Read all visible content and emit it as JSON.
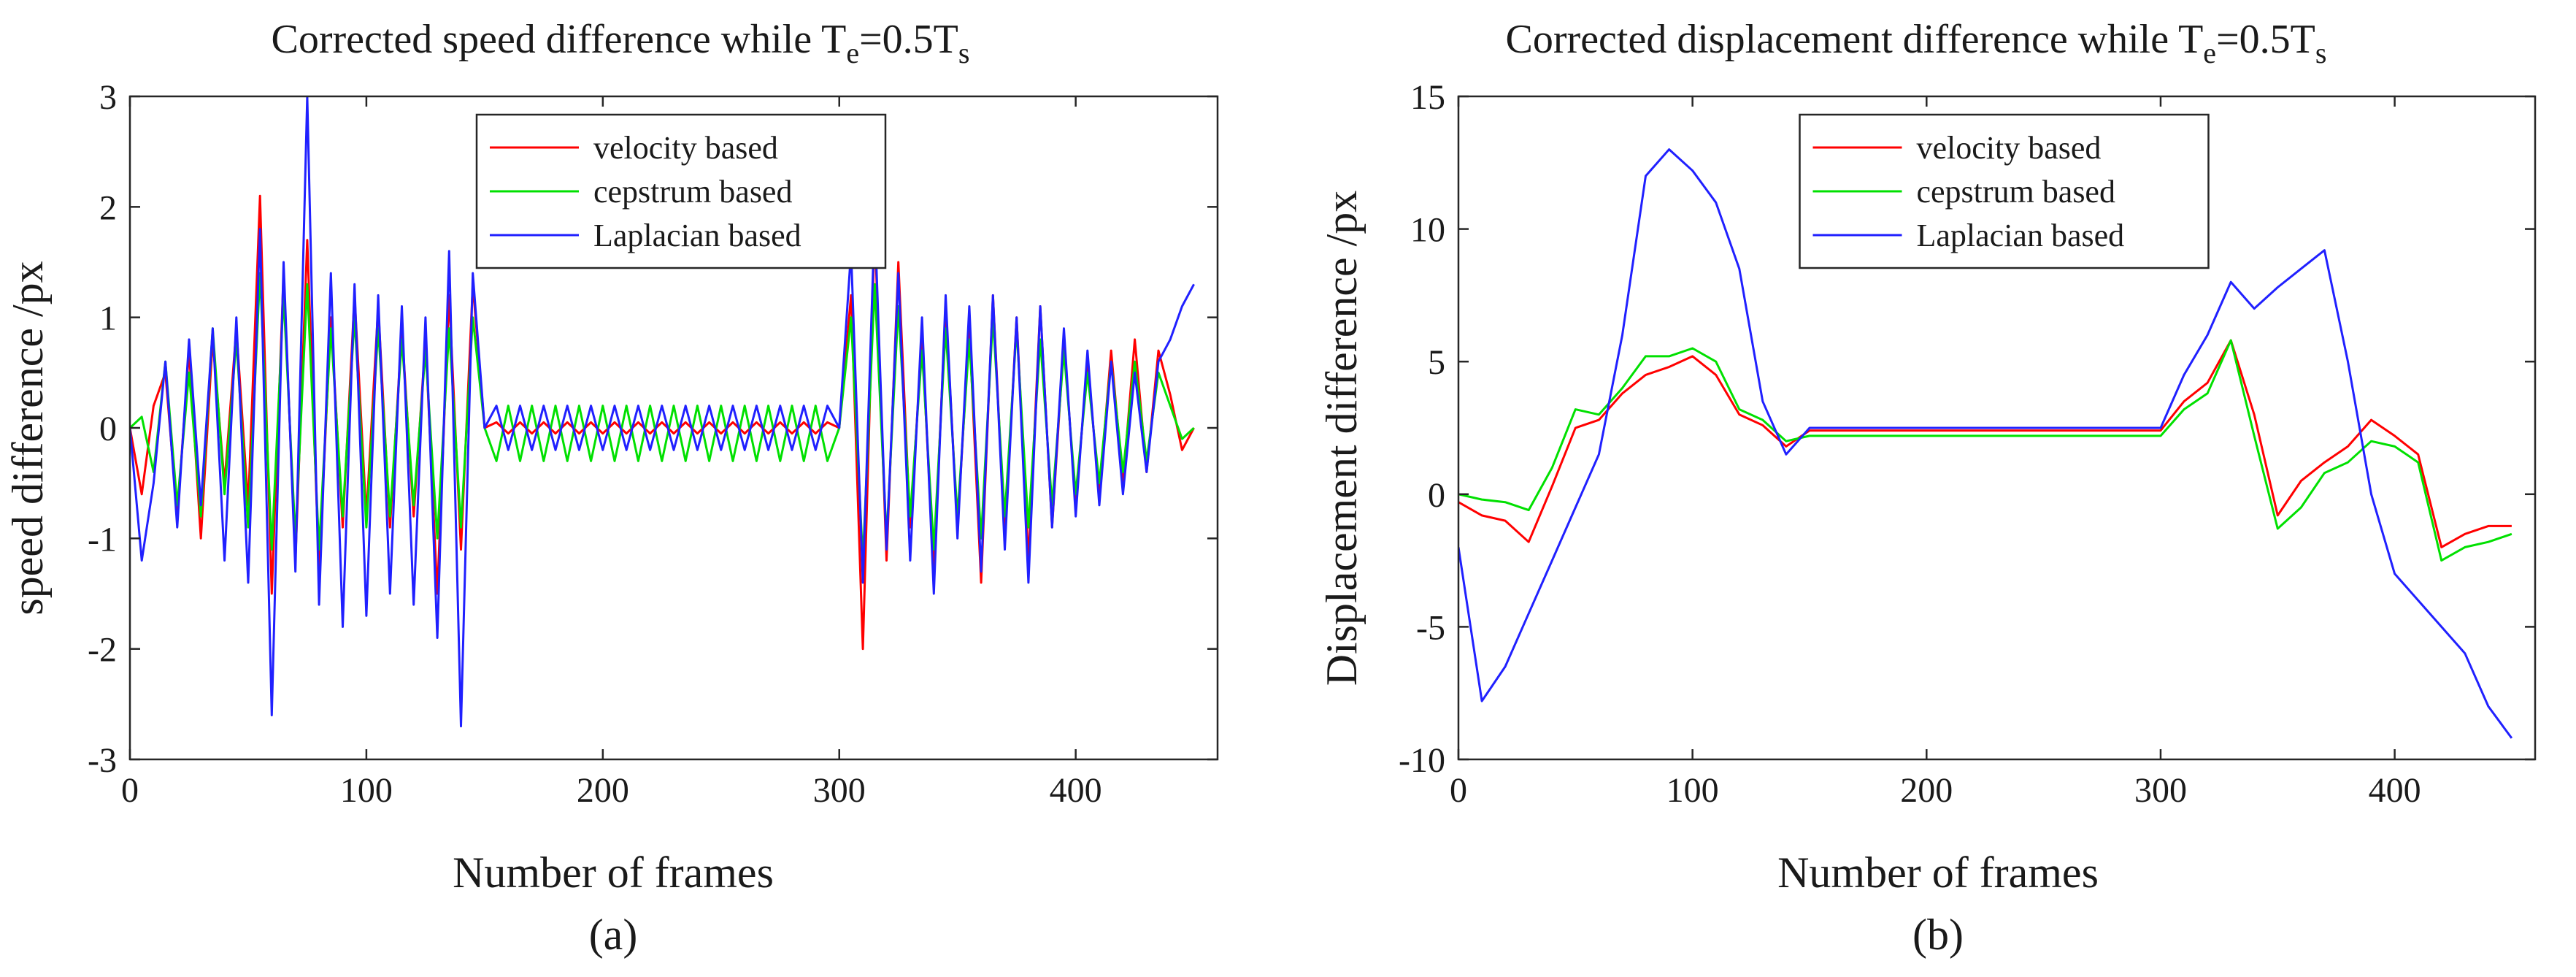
{
  "figure": {
    "panels": [
      {
        "caption": "(a)"
      },
      {
        "caption": "(b)"
      }
    ]
  },
  "chart_data": [
    {
      "type": "line",
      "title_main": "Corrected speed difference while T",
      "title_sub1": "e",
      "title_mid": "=0.5T",
      "title_sub2": "s",
      "xlabel": "Number of frames",
      "ylabel": "speed difference /px",
      "xlim": [
        0,
        460
      ],
      "ylim": [
        -3,
        3
      ],
      "xticks": [
        0,
        100,
        200,
        300,
        400
      ],
      "yticks": [
        -3,
        -2,
        -1,
        0,
        1,
        2,
        3
      ],
      "legend_position": "top-center",
      "series": [
        {
          "name": "velocity based",
          "color": "#ff0000",
          "x": [
            0,
            5,
            10,
            15,
            20,
            25,
            30,
            35,
            40,
            45,
            50,
            55,
            60,
            65,
            70,
            75,
            80,
            85,
            90,
            95,
            100,
            105,
            110,
            115,
            120,
            125,
            130,
            135,
            140,
            145,
            150,
            155,
            160,
            165,
            170,
            175,
            180,
            185,
            190,
            195,
            200,
            205,
            210,
            215,
            220,
            225,
            230,
            235,
            240,
            245,
            250,
            255,
            260,
            265,
            270,
            275,
            280,
            285,
            290,
            295,
            300,
            305,
            310,
            315,
            320,
            325,
            330,
            335,
            340,
            345,
            350,
            355,
            360,
            365,
            370,
            375,
            380,
            385,
            390,
            395,
            400,
            405,
            410,
            415,
            420,
            425,
            430,
            435,
            440,
            445,
            450
          ],
          "y": [
            0,
            -0.6,
            0.2,
            0.5,
            -0.8,
            0.7,
            -1.0,
            0.8,
            -0.5,
            0.9,
            -0.7,
            2.1,
            -1.5,
            1.4,
            -1.2,
            1.7,
            -1.3,
            1.0,
            -0.9,
            1.2,
            -0.8,
            1.1,
            -0.9,
            0.9,
            -0.8,
            0.8,
            -1.5,
            1.2,
            -1.1,
            1.3,
            0.0,
            0.05,
            -0.05,
            0.05,
            -0.05,
            0.05,
            -0.05,
            0.05,
            -0.05,
            0.05,
            -0.05,
            0.05,
            -0.05,
            0.05,
            -0.05,
            0.05,
            -0.05,
            0.05,
            -0.05,
            0.05,
            -0.05,
            0.05,
            -0.05,
            0.05,
            -0.05,
            0.05,
            -0.05,
            0.05,
            -0.05,
            0.05,
            0.0,
            1.2,
            -2.0,
            1.8,
            -1.2,
            1.5,
            -0.9,
            0.8,
            -1.3,
            1.1,
            -0.9,
            0.9,
            -1.4,
            1.2,
            -1.0,
            1.0,
            -1.2,
            1.1,
            -0.9,
            0.8,
            -0.7,
            0.6,
            -0.6,
            0.7,
            -0.5,
            0.8,
            -0.4,
            0.7,
            0.3,
            -0.2,
            0.0
          ]
        },
        {
          "name": "cepstrum based",
          "color": "#00e000",
          "x": [
            0,
            5,
            10,
            15,
            20,
            25,
            30,
            35,
            40,
            45,
            50,
            55,
            60,
            65,
            70,
            75,
            80,
            85,
            90,
            95,
            100,
            105,
            110,
            115,
            120,
            125,
            130,
            135,
            140,
            145,
            150,
            155,
            160,
            165,
            170,
            175,
            180,
            185,
            190,
            195,
            200,
            205,
            210,
            215,
            220,
            225,
            230,
            235,
            240,
            245,
            250,
            255,
            260,
            265,
            270,
            275,
            280,
            285,
            290,
            295,
            300,
            305,
            310,
            315,
            320,
            325,
            330,
            335,
            340,
            345,
            350,
            355,
            360,
            365,
            370,
            375,
            380,
            385,
            390,
            395,
            400,
            405,
            410,
            415,
            420,
            425,
            430,
            435,
            440,
            445,
            450
          ],
          "y": [
            0,
            0.1,
            -0.4,
            0.6,
            -0.7,
            0.5,
            -0.8,
            0.9,
            -0.6,
            0.8,
            -0.9,
            1.4,
            -1.1,
            1.2,
            -1.0,
            1.3,
            -1.1,
            0.9,
            -0.8,
            1.0,
            -0.9,
            0.9,
            -0.8,
            0.8,
            -0.7,
            0.7,
            -1.0,
            0.9,
            -0.9,
            1.0,
            0.0,
            -0.3,
            0.2,
            -0.3,
            0.2,
            -0.3,
            0.2,
            -0.3,
            0.2,
            -0.3,
            0.2,
            -0.3,
            0.2,
            -0.3,
            0.2,
            -0.3,
            0.2,
            -0.3,
            0.2,
            -0.3,
            0.2,
            -0.3,
            0.2,
            -0.3,
            0.2,
            -0.3,
            0.2,
            -0.3,
            0.2,
            -0.3,
            0.0,
            1.0,
            -1.2,
            1.3,
            -1.0,
            1.1,
            -0.8,
            0.7,
            -1.1,
            0.9,
            -0.8,
            0.8,
            -1.0,
            1.0,
            -0.8,
            0.9,
            -0.9,
            0.8,
            -0.7,
            0.7,
            -0.6,
            0.5,
            -0.5,
            0.6,
            -0.4,
            0.6,
            -0.3,
            0.5,
            0.2,
            -0.1,
            0.0
          ]
        },
        {
          "name": "Laplacian based",
          "color": "#2020ff",
          "x": [
            0,
            5,
            10,
            15,
            20,
            25,
            30,
            35,
            40,
            45,
            50,
            55,
            60,
            65,
            70,
            75,
            80,
            85,
            90,
            95,
            100,
            105,
            110,
            115,
            120,
            125,
            130,
            135,
            140,
            145,
            150,
            155,
            160,
            165,
            170,
            175,
            180,
            185,
            190,
            195,
            200,
            205,
            210,
            215,
            220,
            225,
            230,
            235,
            240,
            245,
            250,
            255,
            260,
            265,
            270,
            275,
            280,
            285,
            290,
            295,
            300,
            305,
            310,
            315,
            320,
            325,
            330,
            335,
            340,
            345,
            350,
            355,
            360,
            365,
            370,
            375,
            380,
            385,
            390,
            395,
            400,
            405,
            410,
            415,
            420,
            425,
            430,
            435,
            440,
            445,
            450
          ],
          "y": [
            0,
            -1.2,
            -0.5,
            0.6,
            -0.9,
            0.8,
            -0.7,
            0.9,
            -1.2,
            1.0,
            -1.4,
            1.8,
            -2.6,
            1.5,
            -1.3,
            3.0,
            -1.6,
            1.4,
            -1.8,
            1.3,
            -1.7,
            1.2,
            -1.5,
            1.1,
            -1.6,
            1.0,
            -1.9,
            1.6,
            -2.7,
            1.4,
            0.0,
            0.2,
            -0.2,
            0.2,
            -0.2,
            0.2,
            -0.2,
            0.2,
            -0.2,
            0.2,
            -0.2,
            0.2,
            -0.2,
            0.2,
            -0.2,
            0.2,
            -0.2,
            0.2,
            -0.2,
            0.2,
            -0.2,
            0.2,
            -0.2,
            0.2,
            -0.2,
            0.2,
            -0.2,
            0.2,
            -0.2,
            0.2,
            0.0,
            1.6,
            -1.4,
            1.9,
            -1.1,
            1.4,
            -1.2,
            1.0,
            -1.5,
            1.2,
            -1.0,
            1.1,
            -1.3,
            1.2,
            -1.1,
            1.0,
            -1.4,
            1.1,
            -0.9,
            0.9,
            -0.8,
            0.7,
            -0.7,
            0.6,
            -0.6,
            0.5,
            -0.4,
            0.6,
            0.8,
            1.1,
            1.3
          ]
        }
      ]
    },
    {
      "type": "line",
      "title_main": "Corrected displacement difference while T",
      "title_sub1": "e",
      "title_mid": "=0.5T",
      "title_sub2": "s",
      "xlabel": "Number of frames",
      "ylabel": "Displacement difference /px",
      "xlim": [
        0,
        460
      ],
      "ylim": [
        -10,
        15
      ],
      "xticks": [
        0,
        100,
        200,
        300,
        400
      ],
      "yticks": [
        -10,
        -5,
        0,
        5,
        10,
        15
      ],
      "legend_position": "top-center",
      "series": [
        {
          "name": "velocity based",
          "color": "#ff0000",
          "x": [
            0,
            10,
            20,
            30,
            40,
            50,
            60,
            70,
            80,
            90,
            100,
            110,
            120,
            130,
            140,
            150,
            160,
            170,
            180,
            190,
            200,
            210,
            220,
            230,
            240,
            250,
            260,
            270,
            280,
            290,
            300,
            310,
            320,
            330,
            340,
            350,
            360,
            370,
            380,
            390,
            400,
            410,
            420,
            430,
            440,
            450
          ],
          "y": [
            -0.3,
            -0.8,
            -1.0,
            -1.8,
            0.3,
            2.5,
            2.8,
            3.8,
            4.5,
            4.8,
            5.2,
            4.5,
            3.0,
            2.6,
            1.8,
            2.4,
            2.4,
            2.4,
            2.4,
            2.4,
            2.4,
            2.4,
            2.4,
            2.4,
            2.4,
            2.4,
            2.4,
            2.4,
            2.4,
            2.4,
            2.4,
            3.5,
            4.2,
            5.8,
            3.0,
            -0.8,
            0.5,
            1.2,
            1.8,
            2.8,
            2.2,
            1.5,
            -2.0,
            -1.5,
            -1.2,
            -1.2
          ]
        },
        {
          "name": "cepstrum based",
          "color": "#00e000",
          "x": [
            0,
            10,
            20,
            30,
            40,
            50,
            60,
            70,
            80,
            90,
            100,
            110,
            120,
            130,
            140,
            150,
            160,
            170,
            180,
            190,
            200,
            210,
            220,
            230,
            240,
            250,
            260,
            270,
            280,
            290,
            300,
            310,
            320,
            330,
            340,
            350,
            360,
            370,
            380,
            390,
            400,
            410,
            420,
            430,
            440,
            450
          ],
          "y": [
            0.0,
            -0.2,
            -0.3,
            -0.6,
            1.0,
            3.2,
            3.0,
            4.0,
            5.2,
            5.2,
            5.5,
            5.0,
            3.2,
            2.8,
            2.0,
            2.2,
            2.2,
            2.2,
            2.2,
            2.2,
            2.2,
            2.2,
            2.2,
            2.2,
            2.2,
            2.2,
            2.2,
            2.2,
            2.2,
            2.2,
            2.2,
            3.2,
            3.8,
            5.8,
            2.2,
            -1.3,
            -0.5,
            0.8,
            1.2,
            2.0,
            1.8,
            1.2,
            -2.5,
            -2.0,
            -1.8,
            -1.5
          ]
        },
        {
          "name": "Laplacian based",
          "color": "#2020ff",
          "x": [
            0,
            10,
            20,
            30,
            40,
            50,
            60,
            70,
            80,
            90,
            100,
            110,
            120,
            130,
            140,
            150,
            160,
            170,
            180,
            190,
            200,
            210,
            220,
            230,
            240,
            250,
            260,
            270,
            280,
            290,
            300,
            310,
            320,
            330,
            340,
            350,
            360,
            370,
            380,
            390,
            400,
            410,
            420,
            430,
            440,
            450
          ],
          "y": [
            -2.0,
            -7.8,
            -6.5,
            -4.5,
            -2.5,
            -0.5,
            1.5,
            6.0,
            12.0,
            13.0,
            12.2,
            11.0,
            8.5,
            3.5,
            1.5,
            2.5,
            2.5,
            2.5,
            2.5,
            2.5,
            2.5,
            2.5,
            2.5,
            2.5,
            2.5,
            2.5,
            2.5,
            2.5,
            2.5,
            2.5,
            2.5,
            4.5,
            6.0,
            8.0,
            7.0,
            7.8,
            8.5,
            9.2,
            5.0,
            0.0,
            -3.0,
            -4.0,
            -5.0,
            -6.0,
            -8.0,
            -9.2
          ]
        }
      ]
    }
  ]
}
